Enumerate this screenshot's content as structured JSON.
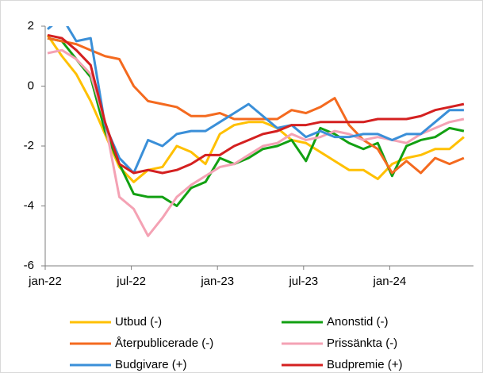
{
  "chart_data": {
    "type": "line",
    "categories": [
      "jan-22",
      null,
      null,
      null,
      null,
      null,
      "jul-22",
      null,
      null,
      null,
      null,
      null,
      "jan-23",
      null,
      null,
      null,
      null,
      null,
      "jul-23",
      null,
      null,
      null,
      null,
      null,
      "jan-24",
      null,
      null,
      null,
      null,
      null
    ],
    "ylim": [
      -6,
      2
    ],
    "yticks": [
      -6,
      -4,
      -2,
      0,
      2
    ],
    "grid": false,
    "series": [
      {
        "name": "Utbud (-)",
        "color": "#ffc000",
        "values": [
          1.7,
          1.0,
          0.4,
          -0.5,
          -1.6,
          -2.7,
          -3.2,
          -2.8,
          -2.7,
          -2.0,
          -2.2,
          -2.6,
          -1.6,
          -1.3,
          -1.2,
          -1.2,
          -1.4,
          -1.8,
          -1.9,
          -2.2,
          -2.5,
          -2.8,
          -2.8,
          -3.1,
          -2.6,
          -2.4,
          -2.3,
          -2.1,
          -2.1,
          -1.7
        ]
      },
      {
        "name": "Anonstid (-)",
        "color": "#12a012",
        "values": [
          1.6,
          1.5,
          0.9,
          0.3,
          -1.5,
          -2.6,
          -3.6,
          -3.7,
          -3.7,
          -4.0,
          -3.4,
          -3.2,
          -2.4,
          -2.6,
          -2.4,
          -2.1,
          -2.0,
          -1.8,
          -2.5,
          -1.4,
          -1.6,
          -1.9,
          -2.1,
          -1.9,
          -3.0,
          -2.0,
          -1.8,
          -1.7,
          -1.4,
          -1.5
        ]
      },
      {
        "name": "Återpublicerade (-)",
        "color": "#f46a1f",
        "values": [
          1.6,
          1.5,
          1.4,
          1.2,
          1.0,
          0.9,
          0.0,
          -0.5,
          -0.6,
          -0.7,
          -1.0,
          -1.0,
          -0.9,
          -1.1,
          -1.1,
          -1.1,
          -1.1,
          -0.8,
          -0.9,
          -0.7,
          -0.4,
          -1.3,
          -1.8,
          -2.1,
          -2.9,
          -2.5,
          -2.9,
          -2.4,
          -2.6,
          -2.4
        ]
      },
      {
        "name": "Prissänkta (-)",
        "color": "#f4a2b4",
        "values": [
          1.1,
          1.2,
          0.9,
          0.4,
          -1.2,
          -3.7,
          -4.1,
          -5.0,
          -4.4,
          -3.7,
          -3.3,
          -3.0,
          -2.7,
          -2.6,
          -2.3,
          -2.0,
          -1.9,
          -1.6,
          -1.8,
          -1.7,
          -1.5,
          -1.6,
          -1.8,
          -1.7,
          -1.8,
          -1.9,
          -1.6,
          -1.4,
          -1.2,
          -1.1
        ]
      },
      {
        "name": "Budgivare (+)",
        "color": "#3a8fd8",
        "values": [
          1.9,
          2.3,
          1.5,
          1.6,
          -1.3,
          -2.4,
          -2.9,
          -1.8,
          -2.0,
          -1.6,
          -1.5,
          -1.5,
          -1.2,
          -0.9,
          -0.6,
          -1.0,
          -1.4,
          -1.3,
          -1.7,
          -1.5,
          -1.7,
          -1.7,
          -1.6,
          -1.6,
          -1.8,
          -1.6,
          -1.6,
          -1.2,
          -0.8,
          -0.8
        ]
      },
      {
        "name": "Budpremie (+)",
        "color": "#d42020",
        "values": [
          1.7,
          1.6,
          1.2,
          0.7,
          -1.2,
          -2.6,
          -2.9,
          -2.8,
          -2.9,
          -2.8,
          -2.6,
          -2.3,
          -2.3,
          -2.0,
          -1.8,
          -1.6,
          -1.5,
          -1.3,
          -1.3,
          -1.2,
          -1.2,
          -1.2,
          -1.2,
          -1.1,
          -1.1,
          -1.1,
          -1.0,
          -0.8,
          -0.7,
          -0.6
        ]
      }
    ]
  }
}
